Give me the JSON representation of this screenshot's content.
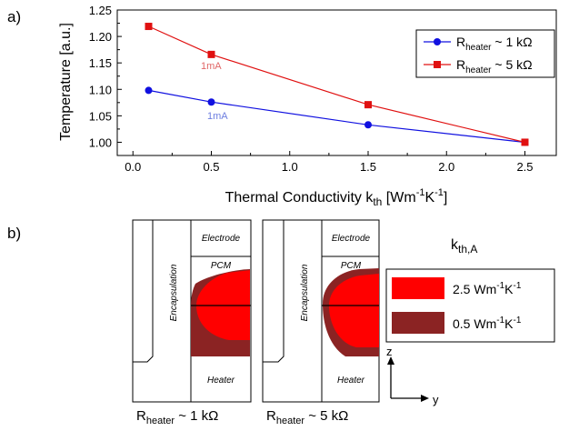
{
  "panel_a": {
    "label": "a)",
    "ylabel": "Temperature [a.u.]",
    "xlabel_main": "Thermal Conductivity k",
    "xlabel_sub": "th",
    "xlabel_unit_pre": " [Wm",
    "xlabel_exp1": "-1",
    "xlabel_unit_mid": "K",
    "xlabel_exp2": "-1",
    "xlabel_unit_post": "]",
    "legend": [
      {
        "pre": "R",
        "sub": "heater",
        "post": " ~ 1 kΩ"
      },
      {
        "pre": "R",
        "sub": "heater",
        "post": " ~ 5 kΩ"
      }
    ],
    "annotations": [
      {
        "text": "1mA",
        "color": "#e06666"
      },
      {
        "text": "1mA",
        "color": "#6d7ee0"
      }
    ]
  },
  "chart_data": {
    "type": "line",
    "x": [
      0.1,
      0.5,
      1.5,
      2.5
    ],
    "xlim": [
      -0.1,
      2.7
    ],
    "ylim": [
      0.975,
      1.25
    ],
    "xticks": [
      "0.0",
      "0.5",
      "1.0",
      "1.5",
      "2.0",
      "2.5"
    ],
    "yticks": [
      "1.00",
      "1.05",
      "1.10",
      "1.15",
      "1.20",
      "1.25"
    ],
    "legend_position": "top-right",
    "grid": false,
    "series": [
      {
        "name": "R_heater ~ 1 kΩ",
        "marker": "circle",
        "color": "#1010e0",
        "values": [
          1.098,
          1.076,
          1.033,
          1.0
        ]
      },
      {
        "name": "R_heater ~ 5 kΩ",
        "marker": "square",
        "color": "#e01010",
        "values": [
          1.219,
          1.166,
          1.071,
          1.0
        ]
      }
    ]
  },
  "panel_b": {
    "label": "b)",
    "electrode": "Electrode",
    "pcm": "PCM",
    "encapsulation": "Encapsulation",
    "heater": "Heater",
    "captions": [
      {
        "pre": "R",
        "sub": "heater",
        "post": " ~ 1 kΩ"
      },
      {
        "pre": "R",
        "sub": "heater",
        "post": " ~ 5 kΩ"
      }
    ],
    "legend_title_main": "k",
    "legend_title_sub": "th,A",
    "legend": [
      {
        "pre": "2.5 Wm",
        "e1": "-1",
        "mid": "K",
        "e2": "-1",
        "color": "#ff0000"
      },
      {
        "pre": "0.5 Wm",
        "e1": "-1",
        "mid": "K",
        "e2": "-1",
        "color": "#8b2323"
      }
    ],
    "axis_z": "z",
    "axis_y": "y"
  }
}
